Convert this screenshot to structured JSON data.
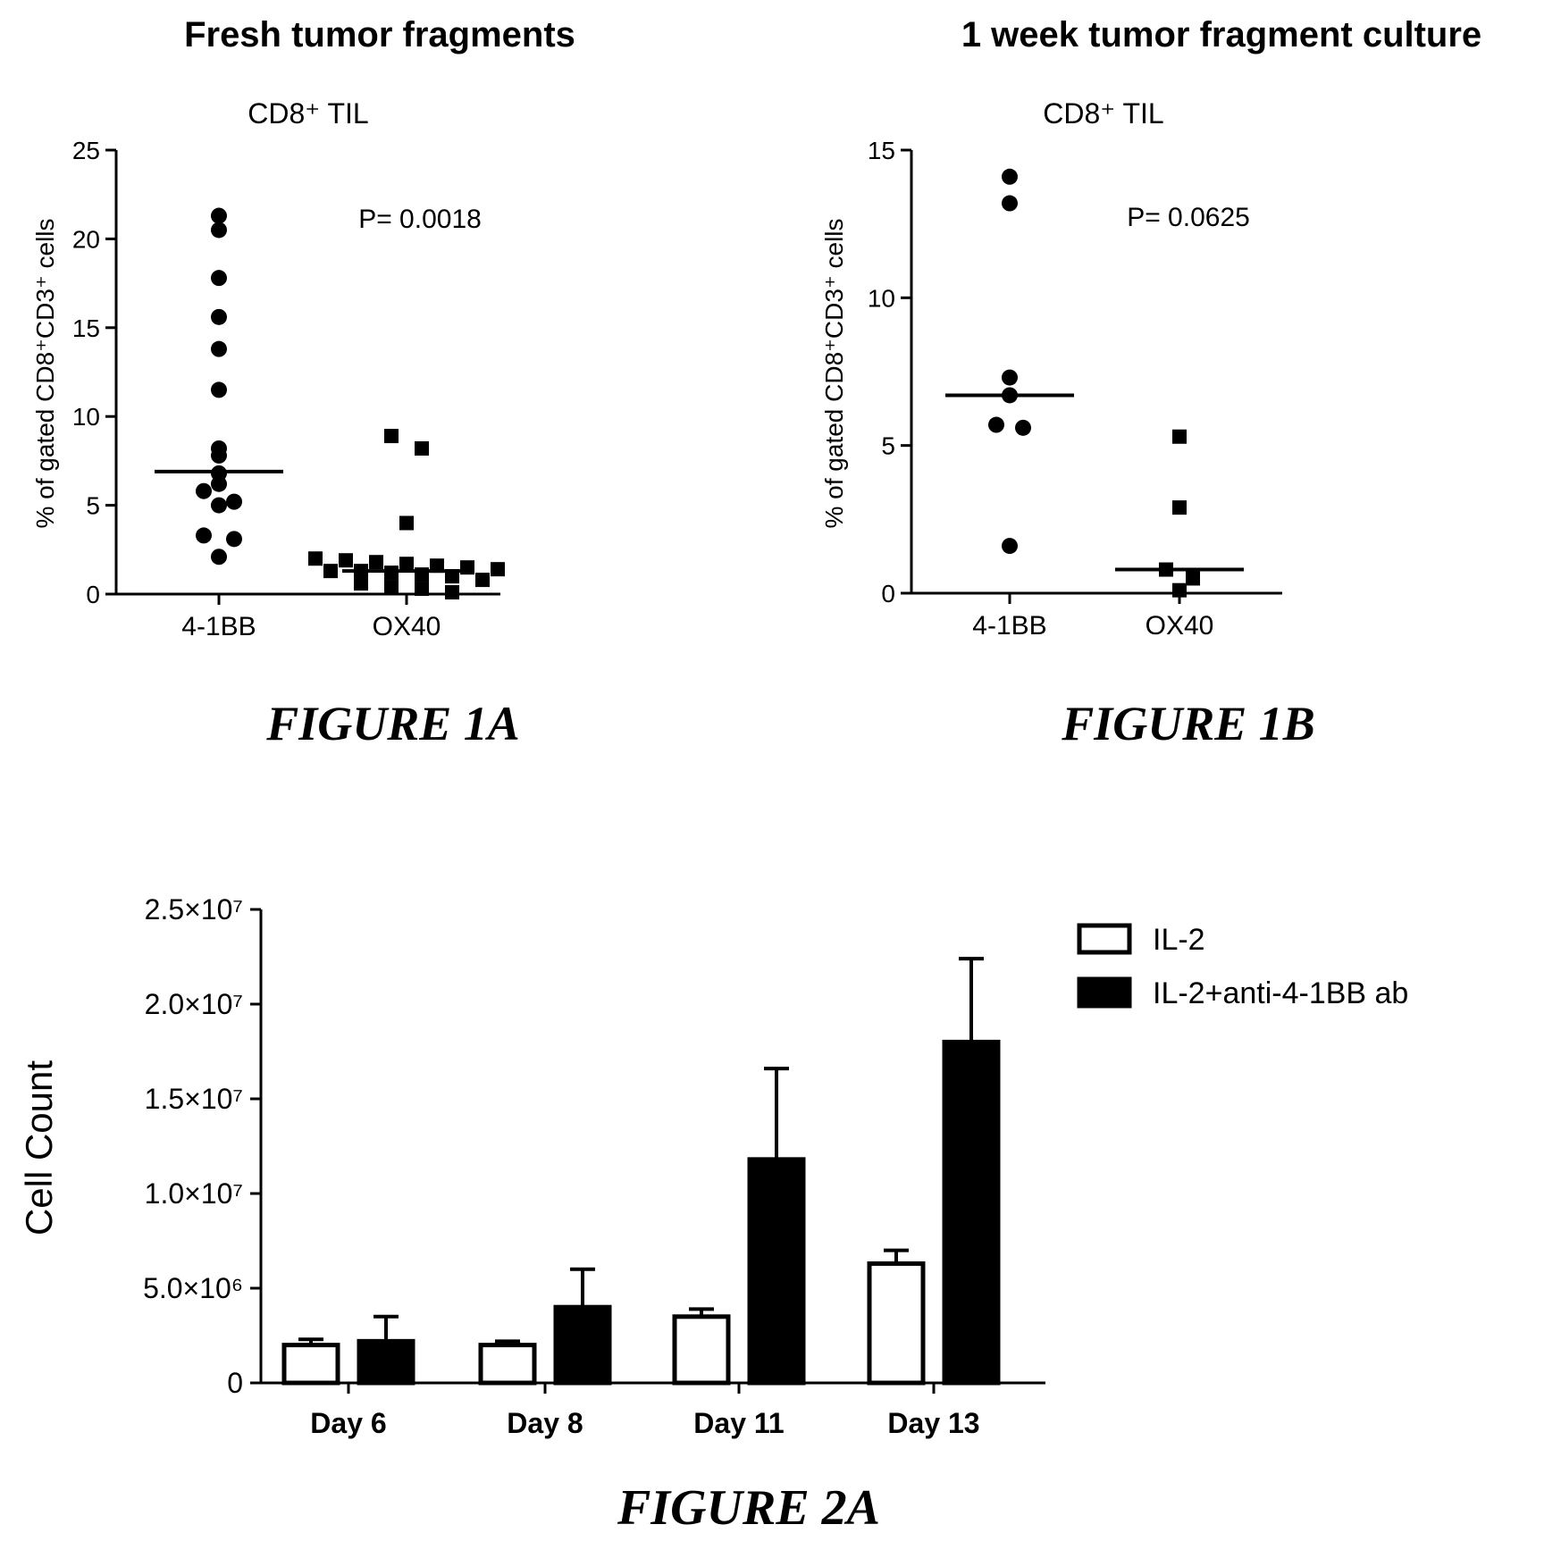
{
  "chart_data": [
    {
      "type": "scatter",
      "panel_title": "Fresh tumor fragments",
      "title": "CD8⁺ TIL",
      "ylabel": "% of gated CD8⁺CD3⁺ cells",
      "categories": [
        "4-1BB",
        "OX40"
      ],
      "ylim": [
        0,
        25
      ],
      "yticks": [
        0,
        5,
        10,
        15,
        20,
        25
      ],
      "annotation": "P= 0.0018",
      "figure_label": "FIGURE 1A",
      "series": [
        {
          "category": "4-1BB",
          "marker": "circle",
          "median": 6.9,
          "values": [
            21.3,
            20.5,
            17.8,
            15.6,
            13.8,
            11.5,
            8.2,
            7.8,
            6.8,
            6.2,
            5.8,
            5.2,
            5.0,
            3.3,
            3.1,
            2.1
          ]
        },
        {
          "category": "OX40",
          "marker": "square",
          "median": 1.3,
          "values": [
            8.9,
            8.2,
            4.0,
            2.0,
            1.9,
            1.8,
            1.7,
            1.6,
            1.5,
            1.4,
            1.3,
            1.3,
            1.2,
            1.1,
            1.0,
            0.8,
            0.6,
            0.4,
            0.3,
            0.1
          ]
        }
      ]
    },
    {
      "type": "scatter",
      "panel_title": "1 week tumor fragment culture",
      "title": "CD8⁺ TIL",
      "ylabel": "% of gated CD8⁺CD3⁺ cells",
      "categories": [
        "4-1BB",
        "OX40"
      ],
      "ylim": [
        0,
        15
      ],
      "yticks": [
        0,
        5,
        10,
        15
      ],
      "annotation": "P= 0.0625",
      "figure_label": "FIGURE 1B",
      "series": [
        {
          "category": "4-1BB",
          "marker": "circle",
          "median": 6.7,
          "values": [
            14.1,
            13.2,
            7.3,
            6.7,
            5.7,
            5.6,
            1.6
          ]
        },
        {
          "category": "OX40",
          "marker": "square",
          "median": 0.8,
          "values": [
            5.3,
            2.9,
            0.8,
            0.5,
            0.1
          ]
        }
      ]
    },
    {
      "type": "bar",
      "ylabel": "Cell Count",
      "categories": [
        "Day 6",
        "Day 8",
        "Day 11",
        "Day 13"
      ],
      "ylim": [
        0,
        25000000
      ],
      "yticks": [
        0,
        5000000,
        10000000,
        15000000,
        20000000,
        25000000
      ],
      "ytick_labels": [
        "0",
        "5.0×10⁶",
        "1.0×10⁷",
        "1.5×10⁷",
        "2.0×10⁷",
        "2.5×10⁷"
      ],
      "legend_position": "top-right",
      "figure_label": "FIGURE 2A",
      "series": [
        {
          "name": "IL-2",
          "fill": "#ffffff",
          "values": [
            2000000,
            2000000,
            3500000,
            6300000
          ],
          "errors": [
            300000,
            200000,
            400000,
            700000
          ]
        },
        {
          "name": "IL-2+anti-4-1BB ab",
          "fill": "#000000",
          "values": [
            2200000,
            4000000,
            11800000,
            18000000
          ],
          "errors": [
            1300000,
            2000000,
            4800000,
            4400000
          ]
        }
      ]
    }
  ]
}
